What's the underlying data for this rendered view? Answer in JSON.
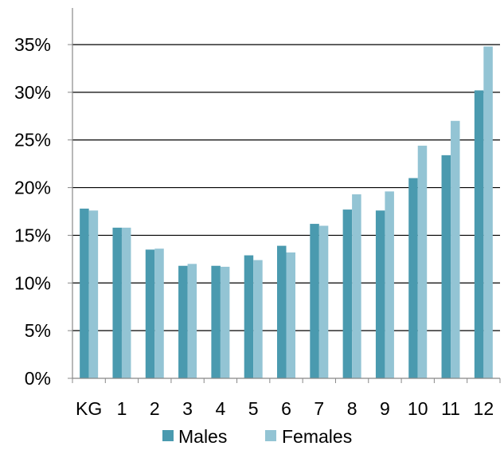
{
  "chart_data": {
    "type": "bar",
    "title": "",
    "xlabel": "",
    "ylabel": "",
    "categories": [
      "KG",
      "1",
      "2",
      "3",
      "4",
      "5",
      "6",
      "7",
      "8",
      "9",
      "10",
      "11",
      "12"
    ],
    "series": [
      {
        "name": "Males",
        "color": "#4a9aaf",
        "values": [
          17.8,
          15.8,
          13.5,
          11.8,
          11.8,
          12.9,
          13.9,
          16.2,
          17.7,
          17.6,
          21.0,
          23.4,
          30.2
        ]
      },
      {
        "name": "Females",
        "color": "#93c4d4",
        "values": [
          17.6,
          15.8,
          13.6,
          12.0,
          11.7,
          12.4,
          13.2,
          16.0,
          19.3,
          19.6,
          24.4,
          27.0,
          34.8
        ]
      }
    ],
    "ylim": [
      0,
      35
    ],
    "yticks": [
      "0%",
      "5%",
      "10%",
      "15%",
      "20%",
      "25%",
      "30%",
      "35%"
    ],
    "ytick_values": [
      0,
      5,
      10,
      15,
      20,
      25,
      30,
      35
    ],
    "grid": true,
    "legend": "bottom"
  }
}
